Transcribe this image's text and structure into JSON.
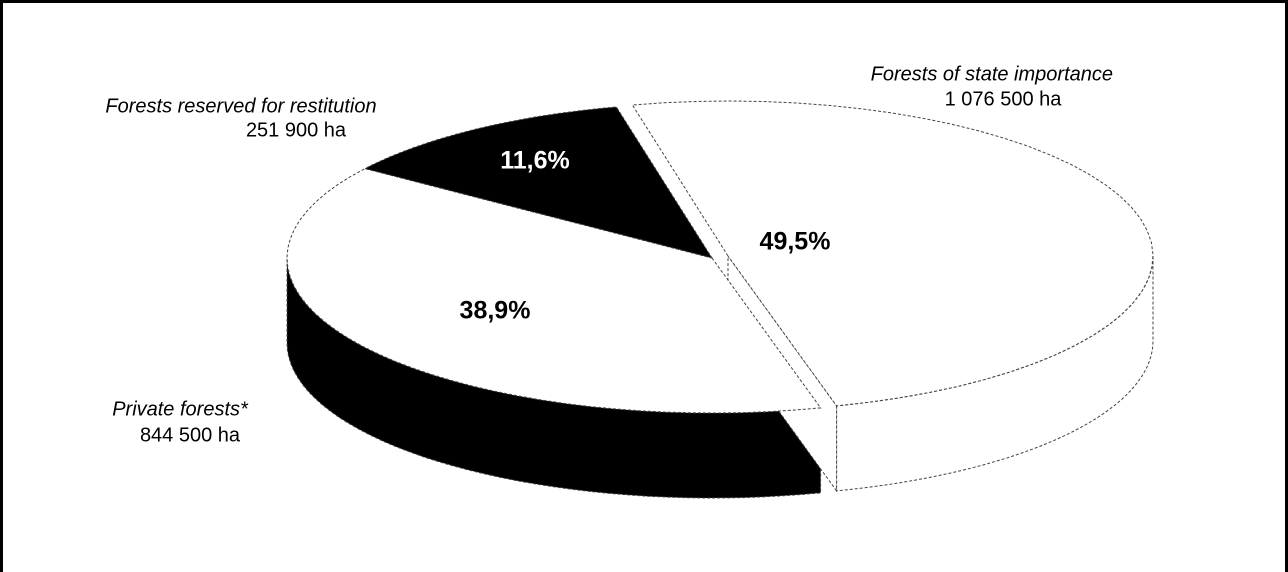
{
  "chart_data": {
    "type": "pie",
    "categories": [
      "Forests of state importance",
      "Private forests*",
      "Forests reserved for restitution"
    ],
    "sublabels": [
      "1 076 500 ha",
      "844 500 ha",
      "251 900 ha"
    ],
    "values": [
      49.5,
      38.9,
      11.6
    ],
    "value_labels": [
      "49,5%",
      "38,9%",
      "11,6%"
    ],
    "colors": [
      "#ffffff",
      "#ffffff",
      "#000000"
    ],
    "side_colors": [
      "#ffffff",
      "#000000",
      "#000000"
    ],
    "label_colors": [
      "#000000",
      "#000000",
      "#ffffff"
    ]
  }
}
